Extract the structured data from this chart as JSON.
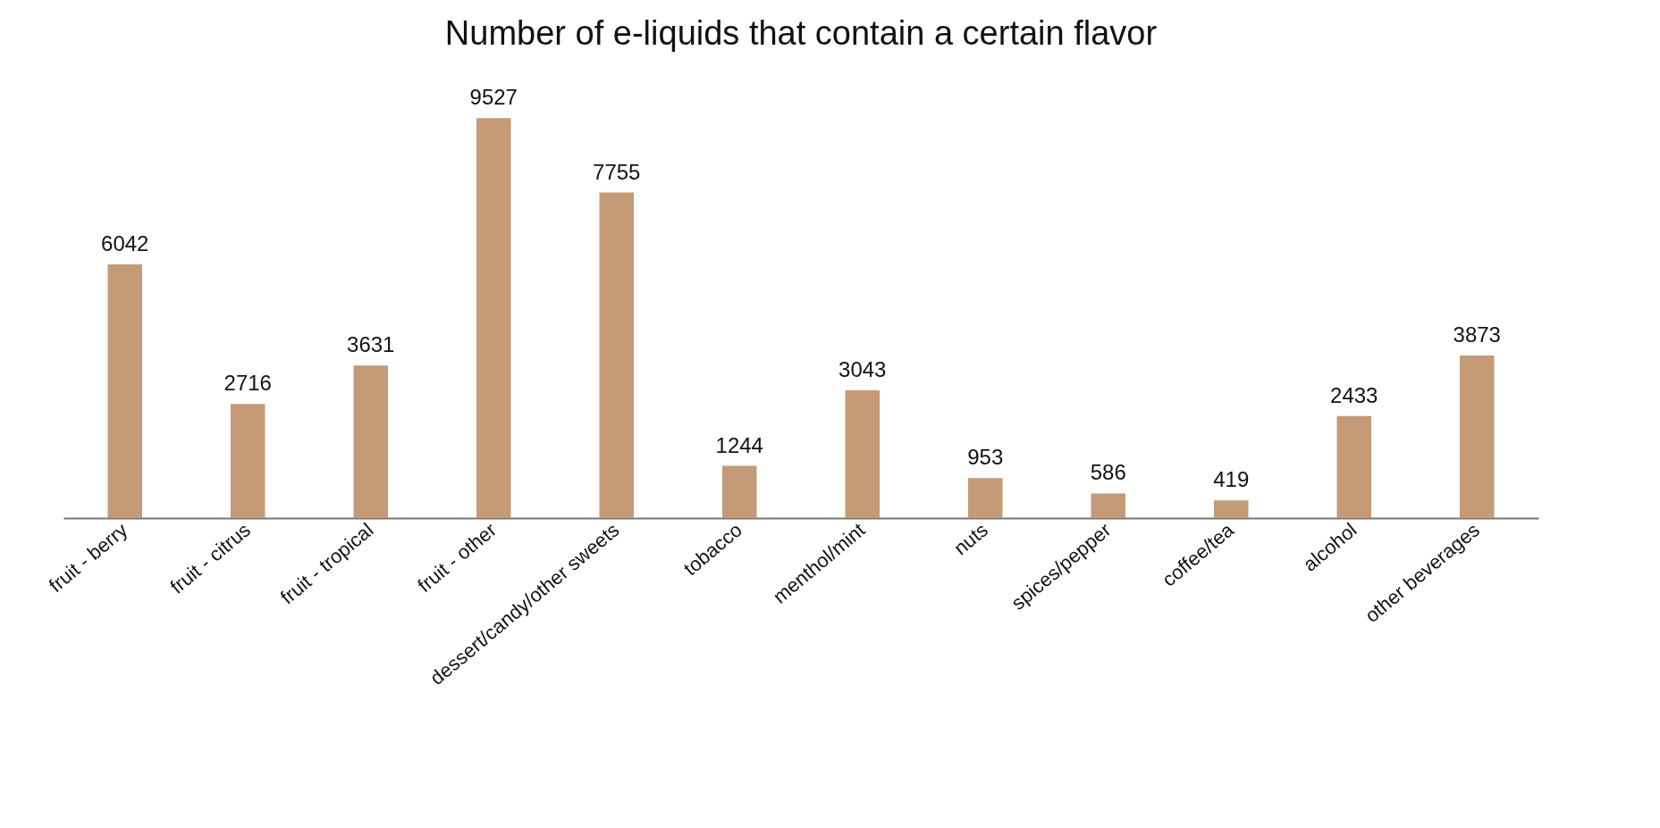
{
  "chart_data": {
    "type": "bar",
    "title": "Number of e-liquids that contain a certain flavor",
    "categories": [
      "fruit - berry",
      "fruit - citrus",
      "fruit - tropical",
      "fruit - other",
      "dessert/candy/other sweets",
      "tobacco",
      "menthol/mint",
      "nuts",
      "spices/pepper",
      "coffee/tea",
      "alcohol",
      "other beverages"
    ],
    "values": [
      6042,
      2716,
      3631,
      9527,
      7755,
      1244,
      3043,
      953,
      586,
      419,
      2433,
      3873
    ],
    "color": "#c49a77",
    "data_labels": true,
    "tick_labels": "x"
  }
}
